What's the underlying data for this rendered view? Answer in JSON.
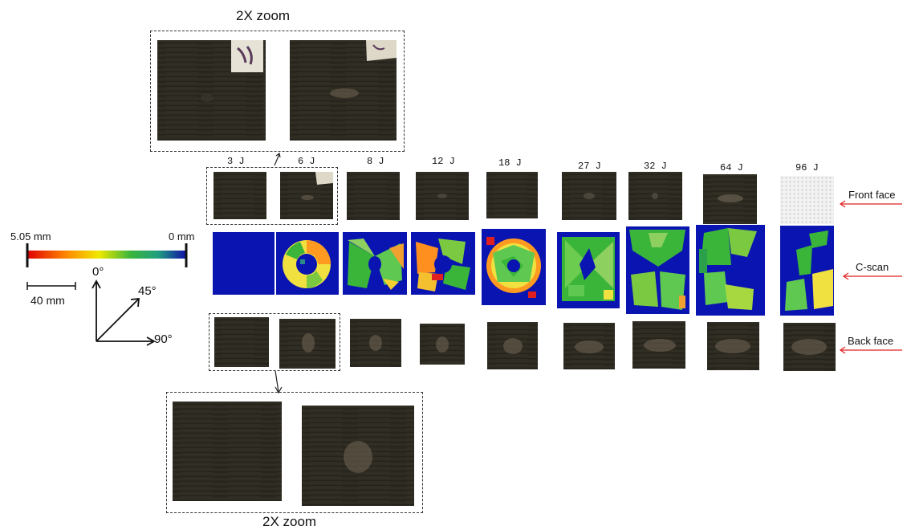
{
  "zoom_top_title": "2X zoom",
  "zoom_bottom_title": "2X zoom",
  "energies": [
    "3 J",
    "6 J",
    "8 J",
    "12 J",
    "18 J",
    "27 J",
    "32 J",
    "64 J",
    "96 J"
  ],
  "row_labels": {
    "front": "Front face",
    "cscan": "C-scan",
    "back": "Back face"
  },
  "colorbar": {
    "max_label": "5.05 mm",
    "min_label": "0 mm"
  },
  "scalebar_label": "40 mm",
  "directions": {
    "up": "0°",
    "diag": "45°",
    "right": "90°"
  },
  "colors": {
    "panel": "#2d2a22",
    "cscan_bg": "#0a14b0",
    "arrow": "#e02020"
  }
}
